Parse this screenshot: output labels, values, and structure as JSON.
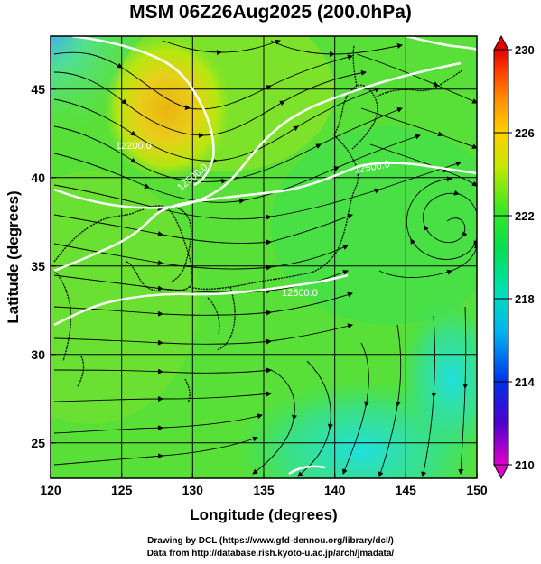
{
  "title": "MSM 06Z26Aug2025 (200.0hPa)",
  "axes": {
    "xlabel": "Longitude (degrees)",
    "ylabel": "Latitude  (degrees)",
    "x_ticks": [
      "120",
      "125",
      "130",
      "135",
      "140",
      "145",
      "150"
    ],
    "y_ticks": [
      "25",
      "30",
      "35",
      "40",
      "45"
    ]
  },
  "colorbar": {
    "ticks": [
      "210",
      "214",
      "218",
      "222",
      "226",
      "230"
    ],
    "colors": [
      "#e000c8",
      "#5000d0",
      "#0030e8",
      "#00b4f0",
      "#00e0b4",
      "#00e050",
      "#40e820",
      "#c8e800",
      "#ffd000",
      "#ff9000",
      "#ff3c00",
      "#e00000"
    ]
  },
  "contour_labels": [
    "12200.0",
    "12500.0",
    "12500.0",
    "12500.0"
  ],
  "credits": {
    "line1": "Drawing by DCL (https://www.gfd-dennou.org/library/dcl/)",
    "line2": "Data from http://database.rish.kyoto-u.ac.jp/arch/jmadata/"
  }
}
